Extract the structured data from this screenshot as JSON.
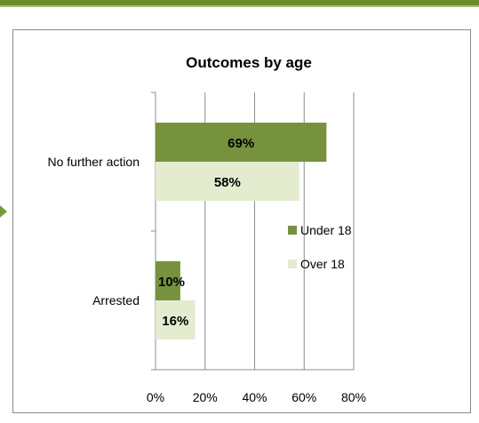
{
  "chart_data": {
    "type": "bar",
    "orientation": "horizontal",
    "title": "Outcomes by age",
    "categories": [
      "No further action",
      "Arrested"
    ],
    "series": [
      {
        "name": "Under 18",
        "values": [
          69,
          10
        ],
        "labels": [
          "69%",
          "10%"
        ],
        "color": "#76923c"
      },
      {
        "name": "Over 18",
        "values": [
          58,
          16
        ],
        "labels": [
          "58%",
          "16%"
        ],
        "color": "#e4ecd0"
      }
    ],
    "xlim": [
      0,
      80
    ],
    "x_ticks": [
      "0%",
      "20%",
      "40%",
      "60%",
      "80%"
    ],
    "grid": true,
    "legend": "right"
  }
}
